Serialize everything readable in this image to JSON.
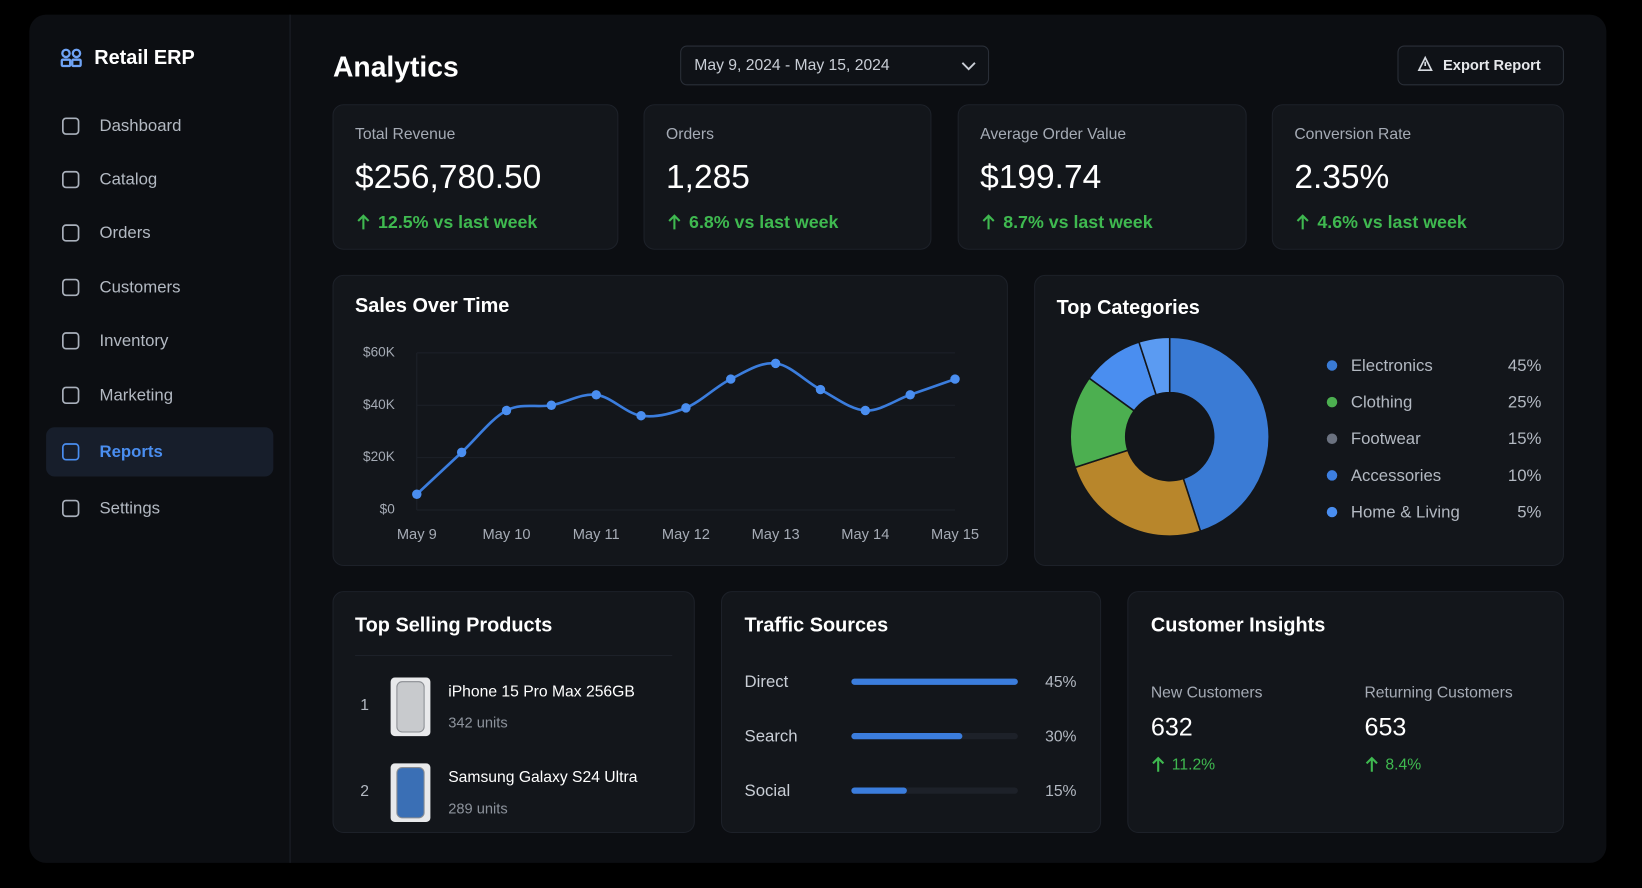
{
  "sidebar": {
    "brand": "Retail ERP",
    "nav": [
      "Dashboard",
      "Catalog",
      "Orders",
      "Customers",
      "Inventory",
      "Marketing",
      "Reports",
      "Settings"
    ],
    "active_index": 6
  },
  "header": {
    "title": "Analytics",
    "date_range": "May 9, 2024 - May 15, 2024",
    "export": "Export Report"
  },
  "kpis": [
    {
      "label": "Total Revenue",
      "value": "$256,780.50",
      "change": "12.5% vs last week"
    },
    {
      "label": "Orders",
      "value": "1,285",
      "change": "6.8% vs last week"
    },
    {
      "label": "Average Order Value",
      "value": "$199.74",
      "change": "8.7% vs last week"
    },
    {
      "label": "Conversion Rate",
      "value": "2.35%",
      "change": "4.6% vs last week"
    }
  ],
  "chart_data": [
    {
      "type": "line",
      "title": "Sales Over Time",
      "x": [
        "May 9",
        null,
        "May 10",
        null,
        "May 11",
        null,
        "May 12",
        null,
        "May 13",
        null,
        "May 14",
        null,
        "May 15"
      ],
      "values": [
        6000,
        22000,
        38000,
        40000,
        44000,
        36000,
        39000,
        50000,
        56000,
        46000,
        38000,
        44000,
        50000
      ],
      "color": "#3b7ddd",
      "ylim": [
        0,
        60000
      ],
      "yticks": [
        {
          "value": 0,
          "label": "$0"
        },
        {
          "value": 20000,
          "label": "$20K"
        },
        {
          "value": 40000,
          "label": "$40K"
        },
        {
          "value": 60000,
          "label": "$60K"
        }
      ],
      "grid": true
    },
    {
      "type": "pie",
      "title": "Top Categories",
      "categories": [
        "Electronics",
        "Clothing",
        "Footwear",
        "Accessories",
        "Home & Living"
      ],
      "values": [
        45,
        25,
        15,
        10,
        5
      ],
      "value_labels": [
        "45%",
        "25%",
        "15%",
        "10%",
        "5%"
      ],
      "colors": [
        "#3a7bd5",
        "#b8862b",
        "#4caf50",
        "#4a8ef0",
        "#5b9bf2"
      ],
      "legend_colors": [
        "#3a7bd5",
        "#4caf50",
        "#6b7280",
        "#3d7fe0",
        "#4a8ef0"
      ],
      "donut": true
    },
    {
      "type": "bar",
      "orientation": "horizontal",
      "title": "Traffic Sources",
      "categories": [
        "Direct",
        "Search",
        "Social"
      ],
      "values": [
        45,
        30,
        15
      ],
      "value_labels": [
        "45%",
        "30%",
        "15%"
      ],
      "color": "#3b7ddd",
      "xlim": [
        0,
        45
      ]
    }
  ],
  "products": {
    "title": "Top Selling Products",
    "items": [
      {
        "rank": 1,
        "name": "iPhone 15 Pro Max 256GB",
        "units": "342 units"
      },
      {
        "rank": 2,
        "name": "Samsung Galaxy S24 Ultra",
        "units": "289 units"
      }
    ]
  },
  "insights": {
    "title": "Customer Insights",
    "metrics": [
      {
        "label": "New Customers",
        "value": 632,
        "change": "11.2%"
      },
      {
        "label": "Returning Customers",
        "value": 653,
        "change": "8.4%"
      }
    ]
  }
}
